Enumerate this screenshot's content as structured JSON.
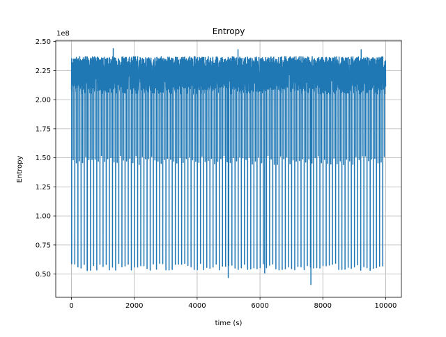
{
  "chart_data": {
    "type": "line",
    "title": "Entropy",
    "xlabel": "time (s)",
    "ylabel": "Entropy",
    "y_offset_text": "1e8",
    "y_scale_factor": 100000000,
    "xlim": [
      -500,
      10500
    ],
    "ylim": [
      30000000,
      251000000
    ],
    "xticks": [
      0,
      2000,
      4000,
      6000,
      8000,
      10000
    ],
    "xtick_labels": [
      "0",
      "2000",
      "4000",
      "6000",
      "8000",
      "10000"
    ],
    "yticks": [
      50000000,
      75000000,
      100000000,
      125000000,
      150000000,
      175000000,
      200000000,
      225000000,
      250000000
    ],
    "ytick_labels": [
      "0.50",
      "0.75",
      "1.00",
      "1.25",
      "1.50",
      "1.75",
      "2.00",
      "2.25",
      "2.50"
    ],
    "grid": true,
    "line_color": "#1f77b4",
    "series": [
      {
        "x_range": [
          0,
          10000
        ],
        "baseline_band": [
          205000000,
          237000000
        ],
        "deep_dip_period_s": 100,
        "deep_dip_min_typical": 55000000,
        "mid_dip_min_typical": 148000000,
        "extremes": [
          {
            "x": 1330,
            "y": 244000000
          },
          {
            "x": 5300,
            "y": 243000000
          },
          {
            "x": 9220,
            "y": 243000000
          },
          {
            "x": 4990,
            "y": 47000000
          },
          {
            "x": 6150,
            "y": 51000000
          },
          {
            "x": 7620,
            "y": 41000000
          },
          {
            "x": 500,
            "y": 53000000
          }
        ]
      }
    ]
  }
}
